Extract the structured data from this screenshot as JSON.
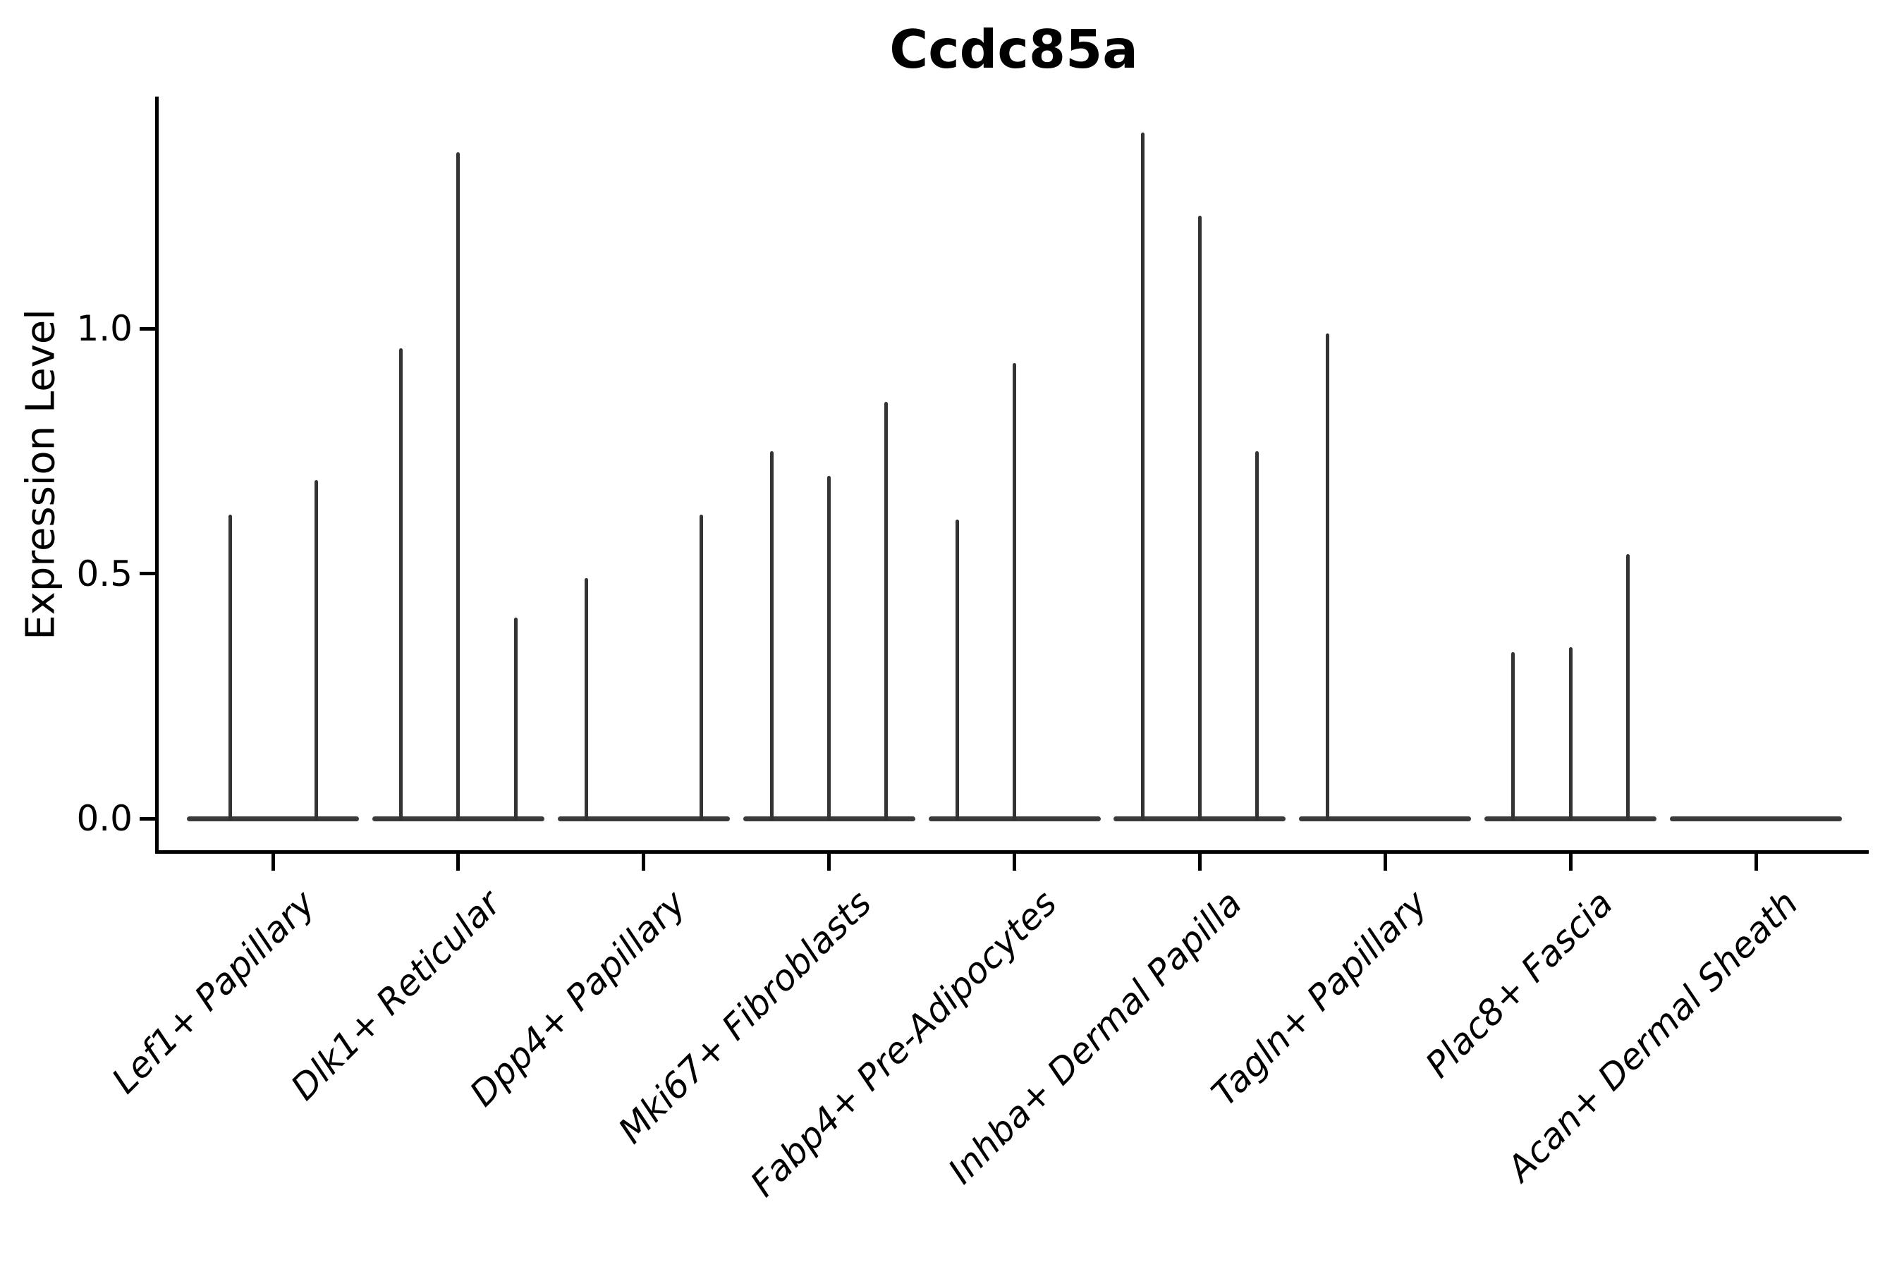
{
  "figure": {
    "title": "Ccdc85a",
    "background": "#ffffff"
  },
  "style": {
    "spike_color": "#333333",
    "baseline_color": "#3a3a3a",
    "axis_color": "#000000",
    "text_color": "#000000"
  },
  "chart_data": {
    "type": "violin",
    "title": "Ccdc85a",
    "xlabel": "",
    "ylabel": "Expression Level",
    "yticks": [
      "0.0",
      "0.5",
      "1.0"
    ],
    "ytick_values": [
      0.0,
      0.5,
      1.0
    ],
    "ylim": [
      -0.07,
      1.47
    ],
    "grid": false,
    "legend_position": "none",
    "categories": [
      "Lef1+ Papillary",
      "Dlk1+ Reticular",
      "Dpp4+ Papillary",
      "Mki67+ Fibroblasts",
      "Fabp4+ Pre-Adipocytes",
      "Inhba+ Dermal Papilla",
      "Tagln+ Papillary",
      "Plac8+ Fascia",
      "Acan+ Dermal Sheath"
    ],
    "groups": [
      {
        "label": "Lef1+ Papillary",
        "violin_peaks": [
          0.62,
          0.69
        ]
      },
      {
        "label": "Dlk1+ Reticular",
        "violin_peaks": [
          0.96,
          1.36,
          0.41
        ]
      },
      {
        "label": "Dpp4+ Papillary",
        "violin_peaks": [
          0.49,
          0.0,
          0.62
        ]
      },
      {
        "label": "Mki67+ Fibroblasts",
        "violin_peaks": [
          0.75,
          0.7,
          0.85
        ]
      },
      {
        "label": "Fabp4+ Pre-Adipocytes",
        "violin_peaks": [
          0.61,
          0.93,
          0.0
        ]
      },
      {
        "label": "Inhba+ Dermal Papilla",
        "violin_peaks": [
          1.4,
          1.23,
          0.75
        ]
      },
      {
        "label": "Tagln+ Papillary",
        "violin_peaks": [
          0.99,
          0.0,
          0.0
        ]
      },
      {
        "label": "Plac8+ Fascia",
        "violin_peaks": [
          0.34,
          0.35,
          0.54
        ]
      },
      {
        "label": "Acan+ Dermal Sheath",
        "violin_peaks": [
          0.0,
          0.0,
          0.0
        ]
      }
    ]
  }
}
